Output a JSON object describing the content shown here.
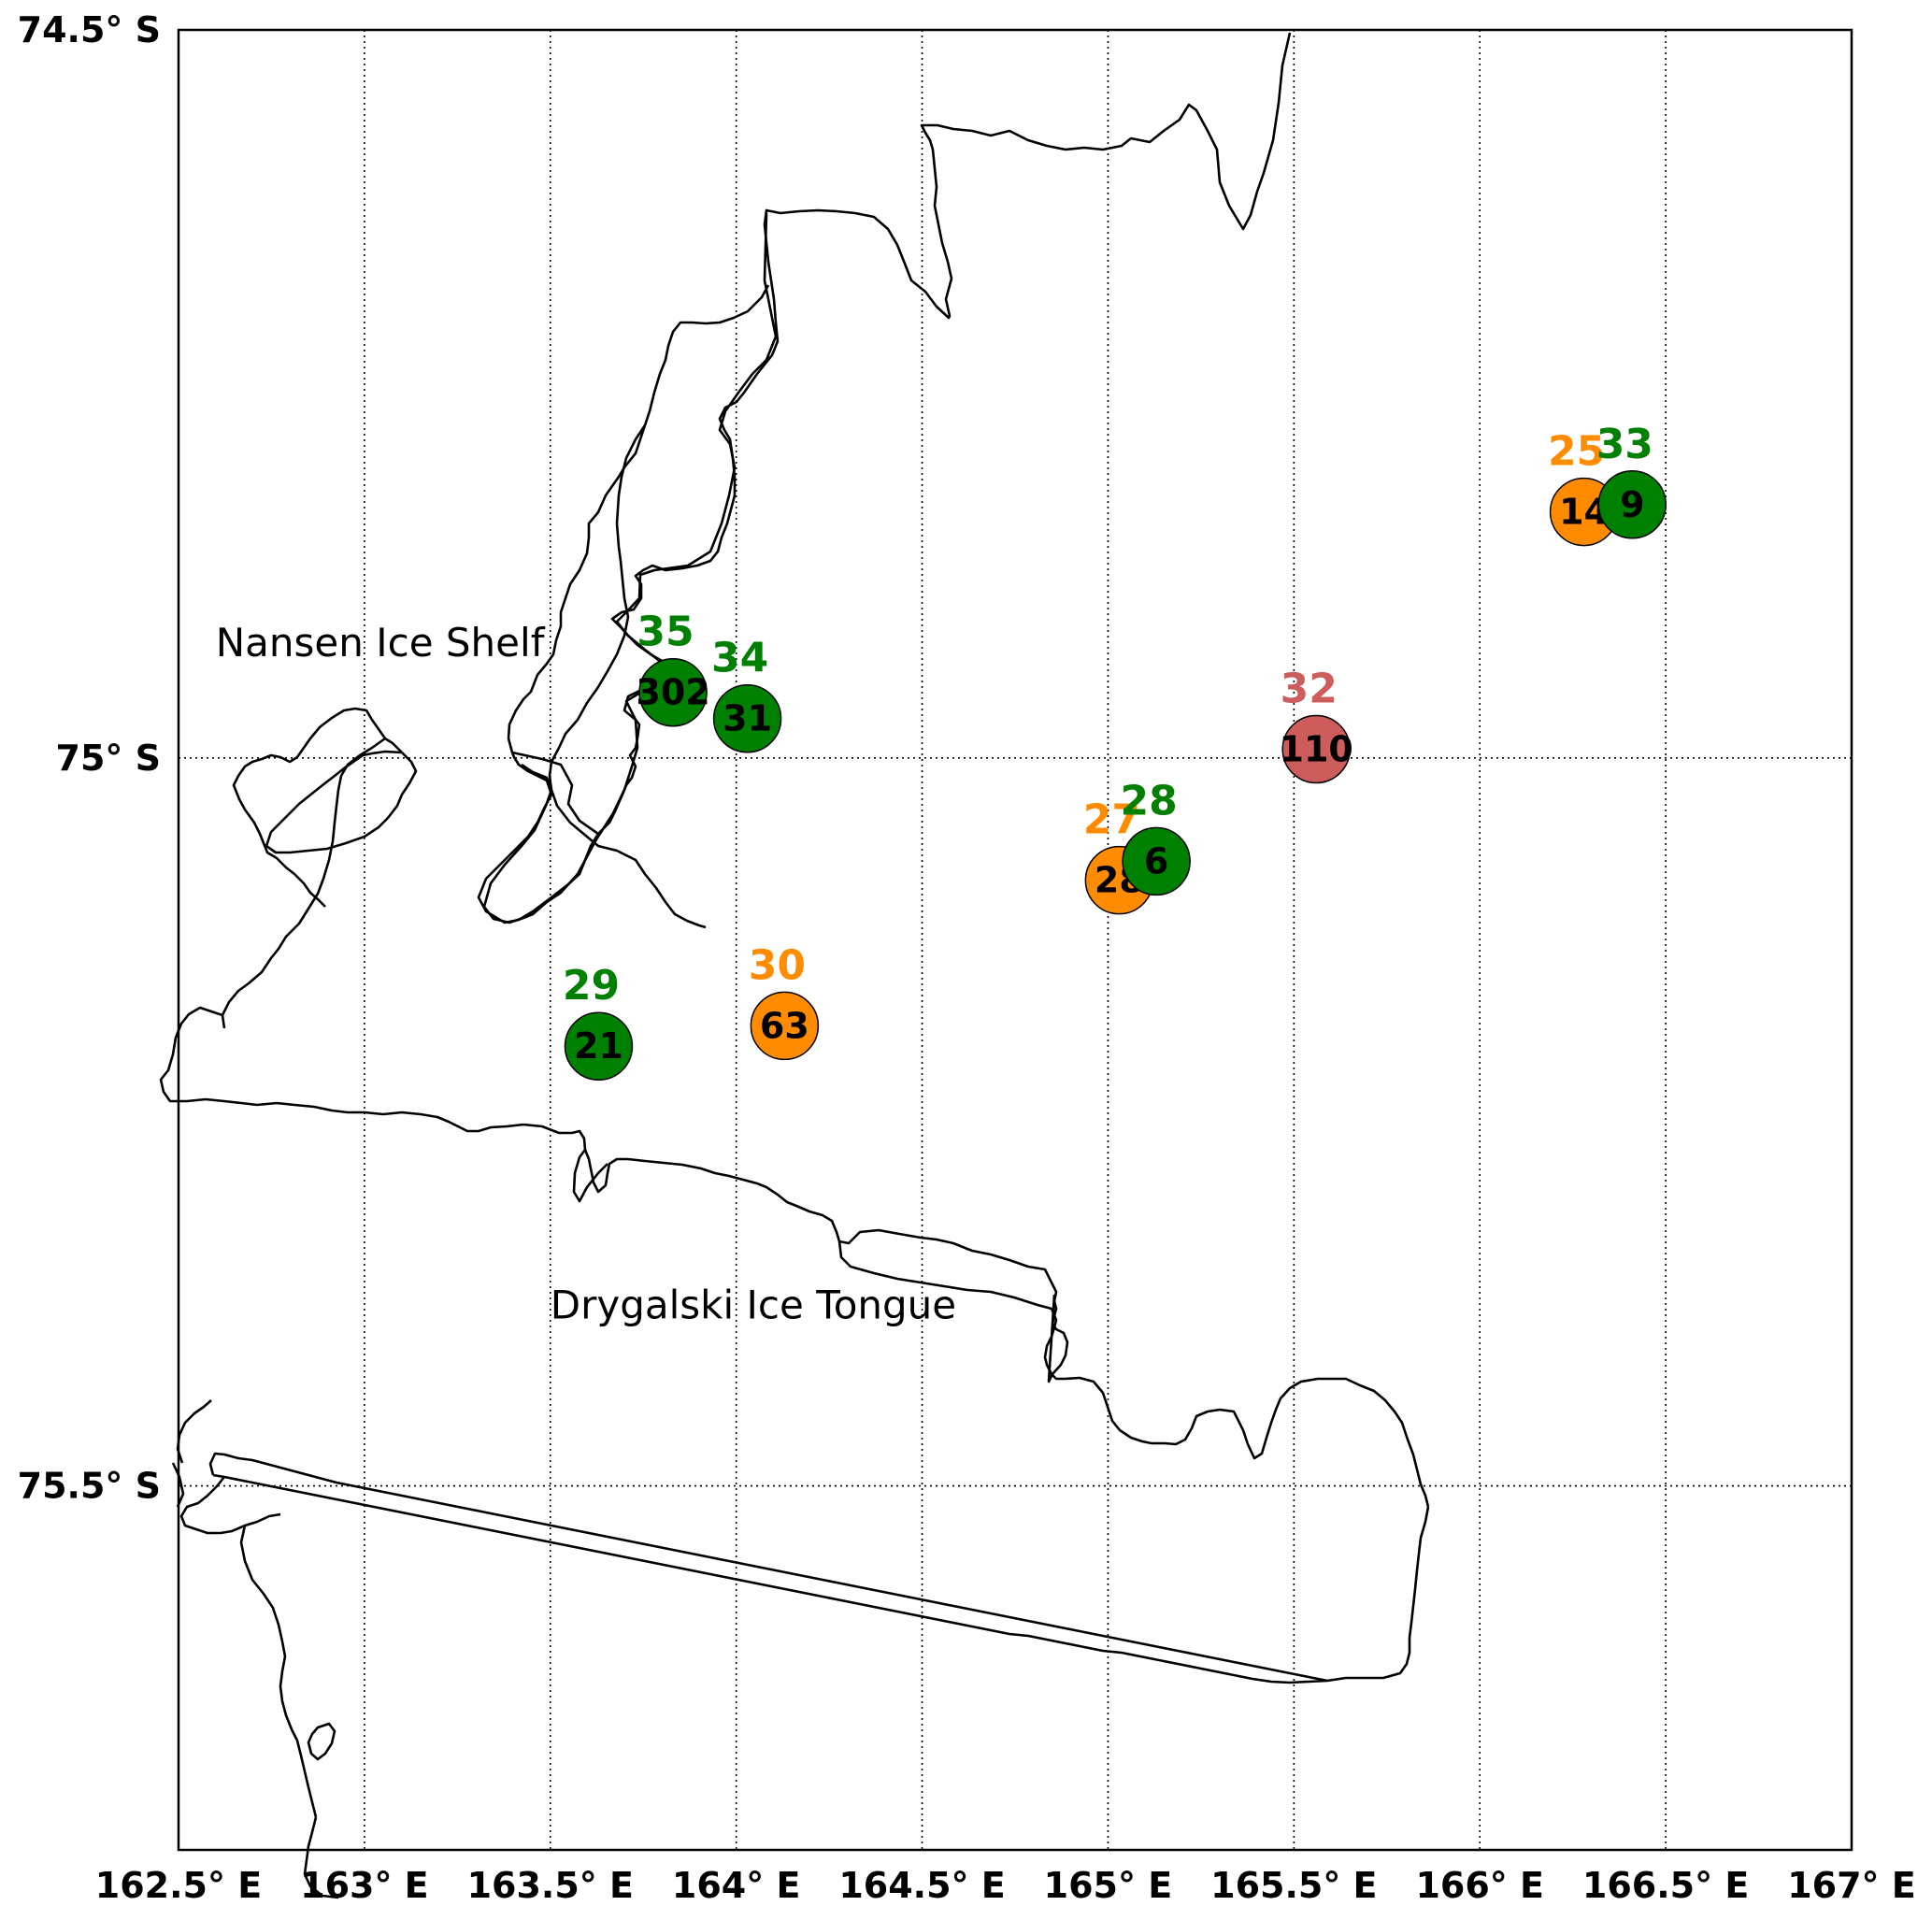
{
  "map": {
    "lon_range": [
      162.5,
      167.0
    ],
    "lat_range": [
      -75.75,
      -74.5
    ],
    "gridlines": "dotted",
    "lon_ticks": [
      {
        "value": 162.5,
        "label": "162.5° E"
      },
      {
        "value": 163.0,
        "label": "163° E"
      },
      {
        "value": 163.5,
        "label": "163.5° E"
      },
      {
        "value": 164.0,
        "label": "164° E"
      },
      {
        "value": 164.5,
        "label": "164.5° E"
      },
      {
        "value": 165.0,
        "label": "165° E"
      },
      {
        "value": 165.5,
        "label": "165.5° E"
      },
      {
        "value": 166.0,
        "label": "166° E"
      },
      {
        "value": 166.5,
        "label": "166.5° E"
      },
      {
        "value": 167.0,
        "label": "167° E"
      }
    ],
    "lat_ticks": [
      {
        "value": -74.5,
        "label": "74.5° S"
      },
      {
        "value": -75.0,
        "label": "75° S"
      },
      {
        "value": -75.5,
        "label": "75.5° S"
      }
    ],
    "place_labels": [
      {
        "name": "Nansen Ice Shelf",
        "lon": 162.6,
        "lat": -74.93
      },
      {
        "name": "Drygalski Ice Tongue",
        "lon": 163.5,
        "lat": -75.385
      }
    ],
    "colors": {
      "green": "#008000",
      "orange": "#ff8c00",
      "red": "#cd5c5c"
    },
    "stations": [
      {
        "id": "35",
        "value": "302",
        "color": "green",
        "lon": 163.83,
        "lat": -74.955
      },
      {
        "id": "34",
        "value": "31",
        "color": "green",
        "lon": 164.03,
        "lat": -74.973
      },
      {
        "id": "29",
        "value": "21",
        "color": "green",
        "lon": 163.63,
        "lat": -75.198
      },
      {
        "id": "30",
        "value": "63",
        "color": "orange",
        "lon": 164.13,
        "lat": -75.184
      },
      {
        "id": "27",
        "value": "28",
        "color": "orange",
        "lon": 165.03,
        "lat": -75.084
      },
      {
        "id": "28",
        "value": "6",
        "color": "green",
        "lon": 165.13,
        "lat": -75.071
      },
      {
        "id": "32",
        "value": "110",
        "color": "red",
        "lon": 165.56,
        "lat": -74.994
      },
      {
        "id": "25",
        "value": "14",
        "color": "orange",
        "lon": 166.28,
        "lat": -74.831
      },
      {
        "id": "33",
        "value": "9",
        "color": "green",
        "lon": 166.41,
        "lat": -74.826
      }
    ]
  }
}
